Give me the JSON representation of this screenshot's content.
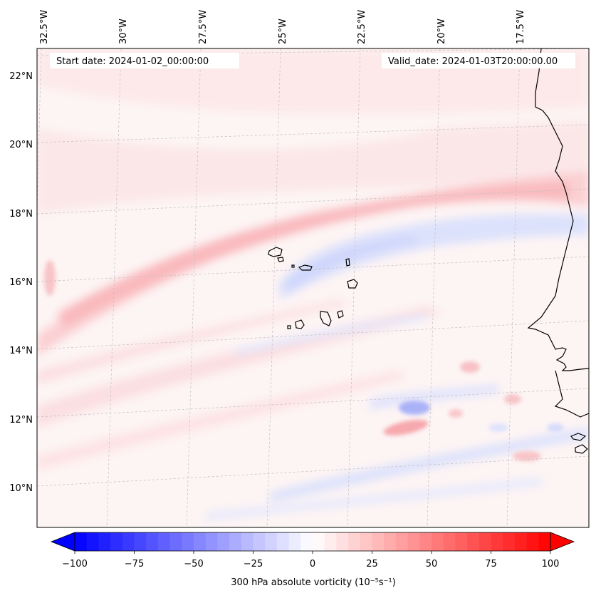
{
  "header": {
    "start_date": "Start date: 2024-01-02_00:00:00",
    "valid_date": "Valid_date: 2024-01-03T20:00:00.00"
  },
  "map": {
    "lon_labels": [
      "32.5°W",
      "30°W",
      "27.5°W",
      "25°W",
      "22.5°W",
      "20°W",
      "17.5°W"
    ],
    "lat_labels": [
      "22°N",
      "20°N",
      "18°N",
      "16°N",
      "14°N",
      "12°N",
      "10°N"
    ],
    "gridlines": "dashed",
    "field_colors": {
      "light_pink": "#fde9ea",
      "pink": "#fcd3d6",
      "red_band": "#f9b8bc",
      "light_blue": "#e9ecfd",
      "blue": "#d6dcfb",
      "deep_blue": "#aab2f7",
      "coastline": "#000000"
    }
  },
  "colorbar": {
    "ticks": [
      "−100",
      "−75",
      "−50",
      "−25",
      "0",
      "25",
      "50",
      "75",
      "100"
    ],
    "min": -100,
    "max": 100,
    "colormap": "bwr",
    "label": "300 hPa absolute vorticity (10⁻⁵s⁻¹)"
  }
}
